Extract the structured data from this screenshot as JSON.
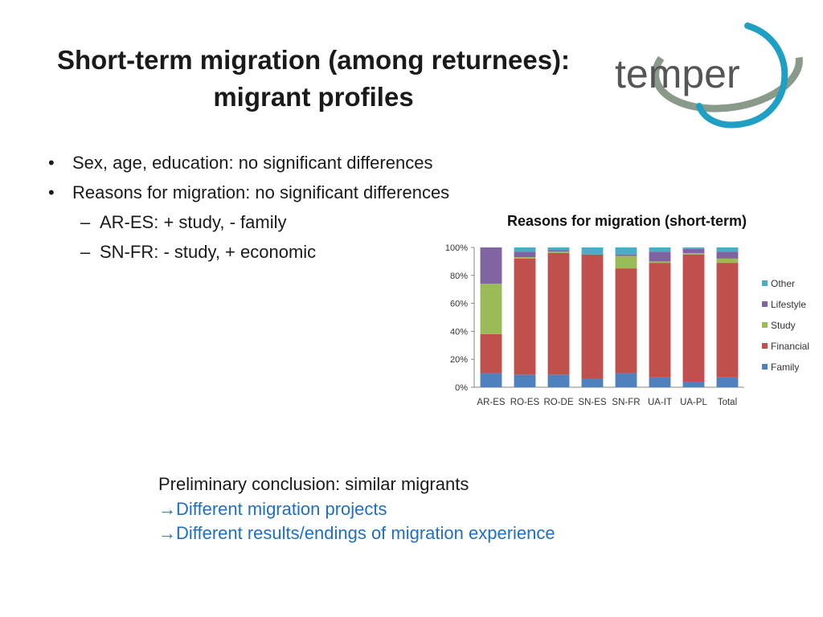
{
  "slide": {
    "title_line1": "Short-term migration (among returnees):",
    "title_line2": "migrant profiles",
    "logo_text": "temper",
    "bullets": [
      "Sex, age, education: no significant differences",
      "Reasons for migration: no significant differences"
    ],
    "sub_bullets": [
      "AR-ES: + study, - family",
      "SN-FR: - study, + economic"
    ],
    "conclusion": {
      "intro": "Preliminary conclusion: similar migrants",
      "lines": [
        "Different migration projects",
        "Different results/endings of migration experience"
      ],
      "arrow_glyph": "→"
    }
  },
  "colors": {
    "logo_text": "#555555",
    "logo_teal": "#1f9fc4",
    "logo_gray": "#8a9a8a",
    "link_blue": "#1f6fc2"
  },
  "chart_data": {
    "type": "bar",
    "stacked": true,
    "percent": true,
    "title": "Reasons for migration (short-term)",
    "categories": [
      "AR-ES",
      "RO-ES",
      "RO-DE",
      "SN-ES",
      "SN-FR",
      "UA-IT",
      "UA-PL",
      "Total"
    ],
    "ylim": [
      0,
      100
    ],
    "yticks": [
      "0%",
      "20%",
      "40%",
      "60%",
      "80%",
      "100%"
    ],
    "legend_position": "right",
    "series": [
      {
        "name": "Family",
        "color": "#4f81bd",
        "values": [
          10,
          9,
          9,
          6,
          10,
          7,
          4,
          7
        ]
      },
      {
        "name": "Financial",
        "color": "#c0504d",
        "values": [
          28,
          83,
          87,
          89,
          75,
          82,
          91,
          82
        ]
      },
      {
        "name": "Study",
        "color": "#9bbb59",
        "values": [
          36,
          1,
          1,
          0,
          9,
          1,
          1,
          3
        ]
      },
      {
        "name": "Lifestyle",
        "color": "#8064a2",
        "values": [
          26,
          4,
          1,
          0,
          1,
          7,
          3,
          5
        ]
      },
      {
        "name": "Other",
        "color": "#4bacc6",
        "values": [
          0,
          3,
          2,
          5,
          5,
          3,
          1,
          3
        ]
      }
    ]
  }
}
